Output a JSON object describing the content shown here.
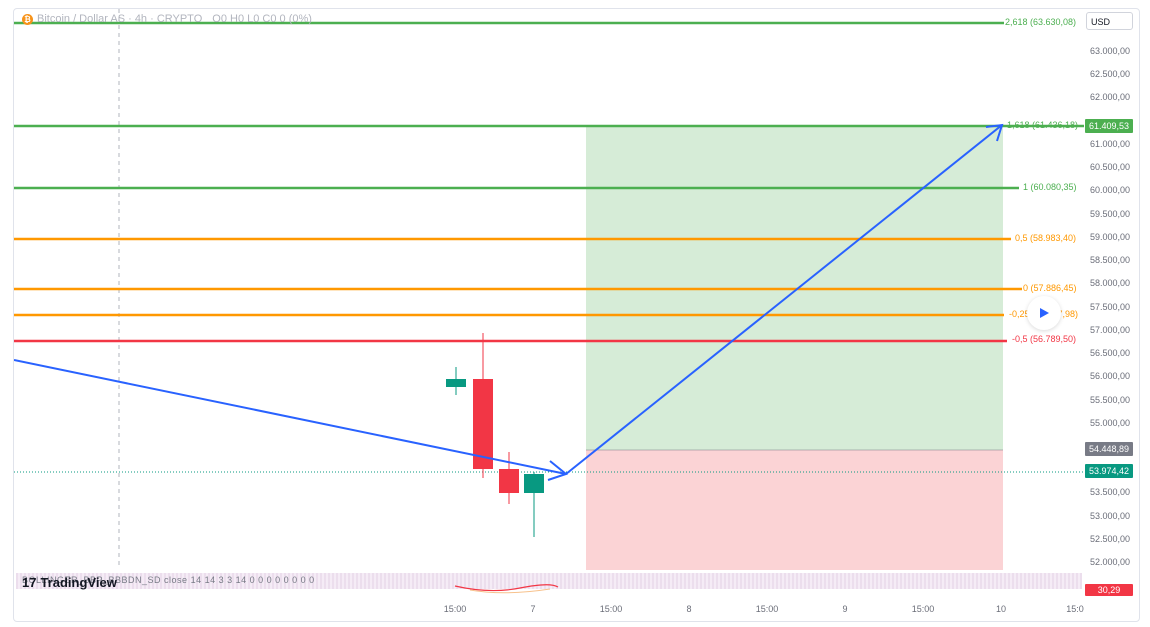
{
  "legend": {
    "icon": "bitcoin-icon",
    "symbol": "Bitcoin / Dollar AS · 4h · CRYPTO",
    "ohlc": "O0 H0 L0 C0 0 (0%)"
  },
  "currency": "USD",
  "price_scale": {
    "ticks": [
      "63.000,00",
      "62.500,00",
      "62.000,00",
      "61.000,00",
      "60.500,00",
      "60.000,00",
      "59.500,00",
      "59.000,00",
      "58.500,00",
      "58.000,00",
      "57.500,00",
      "57.000,00",
      "56.500,00",
      "56.000,00",
      "55.500,00",
      "55.000,00",
      "53.500,00",
      "53.000,00",
      "52.500,00",
      "52.000,00"
    ]
  },
  "badges": {
    "target": "61.409,53",
    "entry": "54.448,89",
    "last": "53.974,42",
    "indicator": "30,29"
  },
  "fib_levels": [
    {
      "label": "2,618 (63.630,08)",
      "color": "#4caf50"
    },
    {
      "label": "1,618 (61.436,18)",
      "color": "#4caf50"
    },
    {
      "label": "1 (60.080,35)",
      "color": "#4caf50"
    },
    {
      "label": "0,5 (58.983,40)",
      "color": "#ff9800"
    },
    {
      "label": "0 (57.886,45)",
      "color": "#ff9800"
    },
    {
      "label": "-0,25 (57.337,98)",
      "color": "#ff9800"
    },
    {
      "label": "-0,5 (56.789,50)",
      "color": "#f23645"
    }
  ],
  "indicator": {
    "text": "BOLLINGER_BBP_BBBDN_SD close 14 14 3 3 14  0 0 0 0 0 0 0 0"
  },
  "logo": {
    "text": "TradingView",
    "mark": "17"
  },
  "time_scale": [
    "15:00",
    "7",
    "15:00",
    "8",
    "15:00",
    "9",
    "15:00",
    "10",
    "15:0"
  ],
  "colors": {
    "bull": "#089981",
    "bear": "#f23645",
    "arrow": "#2962ff",
    "profit": "#d6ecd7",
    "loss": "#fbd3d5"
  }
}
